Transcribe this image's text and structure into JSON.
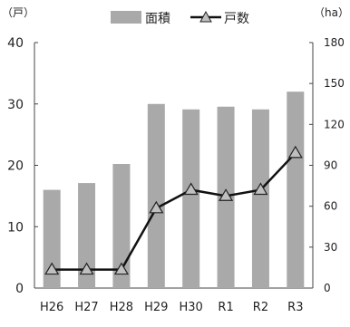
{
  "chart_data": {
    "type": "bar",
    "categories": [
      "H26",
      "H27",
      "H28",
      "H29",
      "H30",
      "R1",
      "R2",
      "R3"
    ],
    "series": [
      {
        "name": "面積",
        "type": "bar",
        "axis": "right",
        "values": [
          72,
          77,
          91,
          135,
          131,
          133,
          131,
          144
        ]
      },
      {
        "name": "戸数",
        "type": "line",
        "axis": "left",
        "values": [
          3,
          3,
          3,
          13,
          16,
          15,
          16,
          22
        ]
      }
    ],
    "left_axis": {
      "unit": "（戸）",
      "ylim": [
        0,
        40
      ],
      "ticks": [
        "0",
        "10",
        "20",
        "30",
        "40"
      ]
    },
    "right_axis": {
      "unit": "（ha）",
      "ylim": [
        0,
        180
      ],
      "ticks": [
        "0",
        "30",
        "60",
        "90",
        "120",
        "150",
        "180"
      ]
    },
    "grid": false,
    "legend": "top-center",
    "colors": {
      "bar": "#a9a9a9",
      "line": "#111111",
      "marker_fill": "#bfbfbf"
    }
  }
}
